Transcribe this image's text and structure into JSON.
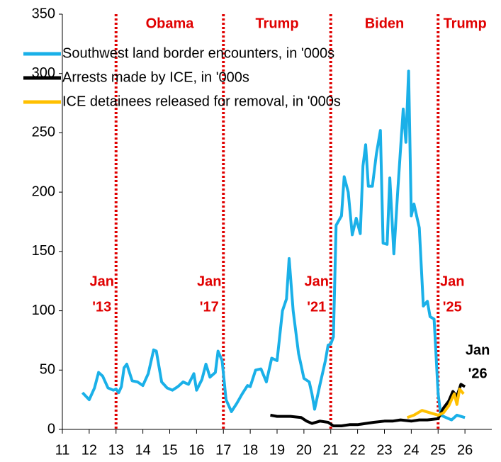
{
  "chart_data": {
    "type": "line",
    "xlim": [
      11,
      27
    ],
    "xticks": [
      11,
      12,
      13,
      14,
      15,
      16,
      17,
      18,
      19,
      20,
      21,
      22,
      23,
      24,
      25,
      26
    ],
    "ylim": [
      0,
      350
    ],
    "yticks": [
      0,
      50,
      100,
      150,
      200,
      250,
      300,
      350
    ],
    "grid": false,
    "legend": "upper left",
    "vlines": [
      13,
      17,
      21,
      25
    ],
    "vline_color": "#e00000",
    "vline_labels": [
      [
        "Jan",
        "'13"
      ],
      [
        "Jan",
        "'17"
      ],
      [
        "Jan",
        "'21"
      ],
      [
        "Jan",
        "'25"
      ]
    ],
    "periods": [
      "Obama",
      "Trump",
      "Biden",
      "Trump"
    ],
    "end_label": [
      "Jan",
      "'26"
    ],
    "series": [
      {
        "name": "Southwest land border encounters, in '000s",
        "color": "#1ab0e8",
        "x": [
          11.75,
          12.0,
          12.2,
          12.35,
          12.5,
          12.7,
          12.9,
          13.0,
          13.1,
          13.2,
          13.3,
          13.4,
          13.6,
          13.8,
          14.0,
          14.2,
          14.4,
          14.5,
          14.7,
          14.9,
          15.1,
          15.3,
          15.5,
          15.7,
          15.9,
          16.0,
          16.2,
          16.35,
          16.5,
          16.7,
          16.8,
          16.95,
          17.1,
          17.3,
          17.5,
          17.7,
          17.9,
          18.0,
          18.2,
          18.4,
          18.6,
          18.8,
          19.0,
          19.2,
          19.35,
          19.45,
          19.6,
          19.8,
          20.0,
          20.2,
          20.3,
          20.4,
          20.6,
          20.8,
          20.9,
          21.0,
          21.1,
          21.2,
          21.4,
          21.5,
          21.65,
          21.8,
          21.95,
          22.1,
          22.2,
          22.3,
          22.4,
          22.55,
          22.7,
          22.85,
          22.95,
          23.1,
          23.2,
          23.35,
          23.5,
          23.7,
          23.8,
          23.9,
          24.0,
          24.1,
          24.3,
          24.45,
          24.6,
          24.7,
          24.85,
          25.0,
          25.1,
          25.3,
          25.5,
          25.7,
          26.0
        ],
        "values": [
          31,
          25,
          35,
          48,
          45,
          35,
          33,
          34,
          31,
          36,
          52,
          55,
          41,
          40,
          37,
          47,
          67,
          66,
          40,
          35,
          33,
          36,
          40,
          38,
          47,
          33,
          42,
          55,
          44,
          48,
          66,
          58,
          25,
          15,
          22,
          30,
          37,
          36,
          50,
          51,
          40,
          60,
          58,
          100,
          110,
          144,
          100,
          64,
          43,
          40,
          30,
          17,
          38,
          58,
          71,
          72,
          78,
          172,
          180,
          213,
          200,
          164,
          178,
          165,
          222,
          240,
          205,
          205,
          232,
          252,
          157,
          156,
          212,
          148,
          202,
          270,
          242,
          302,
          180,
          190,
          170,
          104,
          108,
          95,
          93,
          30,
          12,
          10,
          8,
          12,
          10
        ]
      },
      {
        "name": "Arrests made by ICE, in '000s",
        "color": "#000000",
        "x": [
          18.75,
          19.0,
          19.5,
          19.9,
          20.1,
          20.3,
          20.6,
          20.9,
          21.1,
          21.4,
          21.7,
          22.0,
          22.3,
          22.6,
          23.0,
          23.3,
          23.6,
          24.0,
          24.3,
          24.6,
          25.0,
          25.2,
          25.4,
          25.55,
          25.7,
          25.85,
          26.0
        ],
        "values": [
          12,
          11,
          11,
          10,
          7,
          5,
          7,
          6,
          3,
          3,
          4,
          4,
          5,
          6,
          7,
          7,
          8,
          7,
          8,
          8,
          9,
          18,
          24,
          32,
          28,
          38,
          36
        ]
      },
      {
        "name": "ICE detainees released for removal, in '000s",
        "color": "#ffc000",
        "x": [
          23.85,
          24.1,
          24.4,
          24.7,
          25.0,
          25.2,
          25.4,
          25.6,
          25.7,
          25.8,
          25.95
        ],
        "values": [
          10,
          12,
          16,
          14,
          12,
          14,
          20,
          30,
          21,
          34,
          30
        ]
      }
    ]
  }
}
